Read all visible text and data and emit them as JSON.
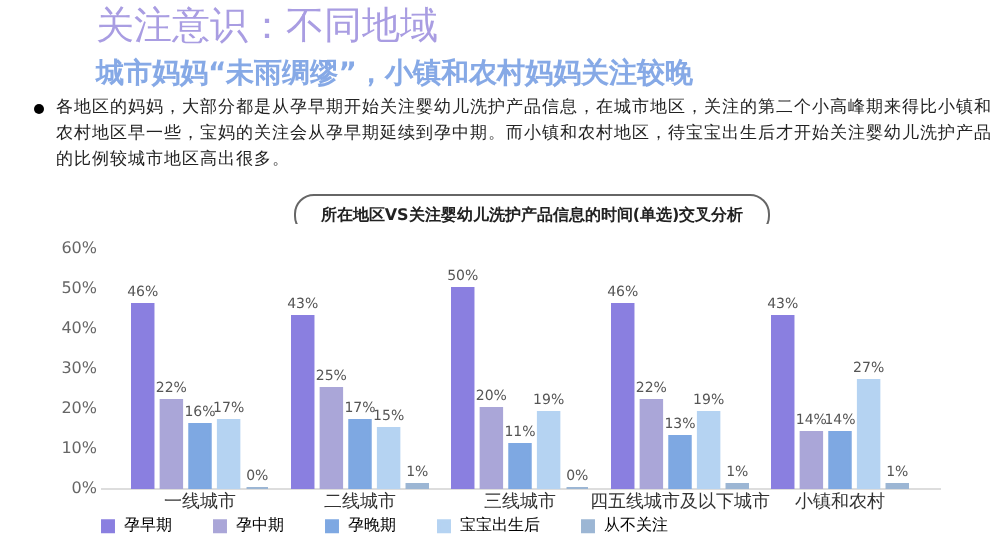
{
  "chart_data": {
    "type": "bar",
    "title": "关注意识：不同地域",
    "subtitle": "城市妈妈“未雨绸缪”，小镇和农村妈妈关注较晚",
    "annotations": [
      "各地区的妈妈，大部分都是从孕早期开始关注婴幼儿洗护产品信息，在城市地区，关注的第二个小高峰期来得比小镇和农村地区早一些，宝妈的关注会从孕早期延续到孕中期。而小镇和农村地区，待宝宝出生后才开始关注婴幼儿洗护产品的比例较城市地区高出很多。",
      "所在地区VS关注婴幼儿洗护产品信息的时间(单选)交叉分析"
    ],
    "categories": [
      "一线城市",
      "二线城市",
      "三线城市",
      "四五线城市及以下城市",
      "小镇和农村"
    ],
    "series": [
      {
        "name": "孕早期",
        "color": "#8a7fe0",
        "values": [
          46,
          43,
          50,
          46,
          43
        ],
        "value_labels": [
          "46%",
          "43%",
          "50%",
          "46%",
          "43%"
        ]
      },
      {
        "name": "孕中期",
        "color": "#aaa6d8",
        "values": [
          22,
          25,
          20,
          22,
          14
        ],
        "value_labels": [
          "22%",
          "25%",
          "20%",
          "22%",
          "14%"
        ]
      },
      {
        "name": "孕晚期",
        "color": "#7ea8e2",
        "values": [
          16,
          17,
          11,
          13,
          14
        ],
        "value_labels": [
          "16%",
          "17%",
          "11%",
          "13%",
          "14%"
        ]
      },
      {
        "name": "宝宝出生后",
        "color": "#b5d3f2",
        "values": [
          17,
          15,
          19,
          19,
          27
        ],
        "value_labels": [
          "17%",
          "15%",
          "19%",
          "19%",
          "27%"
        ]
      },
      {
        "name": "从不关注",
        "color": "#9cb6d4",
        "values": [
          0,
          1,
          0,
          1,
          1
        ],
        "value_labels": [
          "0%",
          "1%",
          "0%",
          "1%",
          "1%"
        ]
      }
    ],
    "ylim": [
      0,
      60
    ],
    "yticks": [
      {
        "value": 0,
        "label": "0%"
      },
      {
        "value": 10,
        "label": "10%"
      },
      {
        "value": 20,
        "label": "20%"
      },
      {
        "value": 30,
        "label": "30%"
      },
      {
        "value": 40,
        "label": "40%"
      },
      {
        "value": 50,
        "label": "50%"
      },
      {
        "value": 60,
        "label": "60%"
      }
    ],
    "legend": "bottom"
  }
}
